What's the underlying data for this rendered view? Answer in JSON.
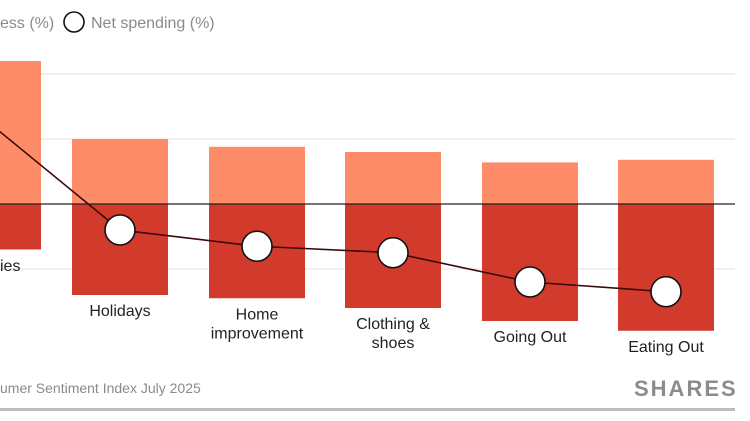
{
  "chart_data": {
    "type": "bar",
    "categories": [
      "ies",
      "Holidays",
      "Home\nimprovement",
      "Clothing &\nshoes",
      "Going Out",
      "Eating Out"
    ],
    "series": [
      {
        "name": "ess (%)",
        "kind": "bar",
        "color": "#ff8c69",
        "values": [
          22,
          10,
          8.8,
          8,
          6.4,
          6.8
        ]
      },
      {
        "name": "",
        "kind": "bar-negative",
        "color": "#d23b2c",
        "values": [
          -7,
          -14,
          -14.5,
          -16,
          -18,
          -19.5
        ]
      },
      {
        "name": "Net spending (%)",
        "kind": "line",
        "color": "#3a0a0a",
        "values": [
          12,
          -4,
          -6.5,
          -7.5,
          -12,
          -13.5
        ]
      }
    ],
    "ylim": [
      -20,
      23
    ],
    "grid": true,
    "legend": "top-left",
    "xlabel": "",
    "ylabel": ""
  },
  "legend": {
    "item1": "ess (%)",
    "item2": "Net spending (%)"
  },
  "footer": {
    "source": "umer Sentiment Index July 2025",
    "brand": "SHARES"
  }
}
